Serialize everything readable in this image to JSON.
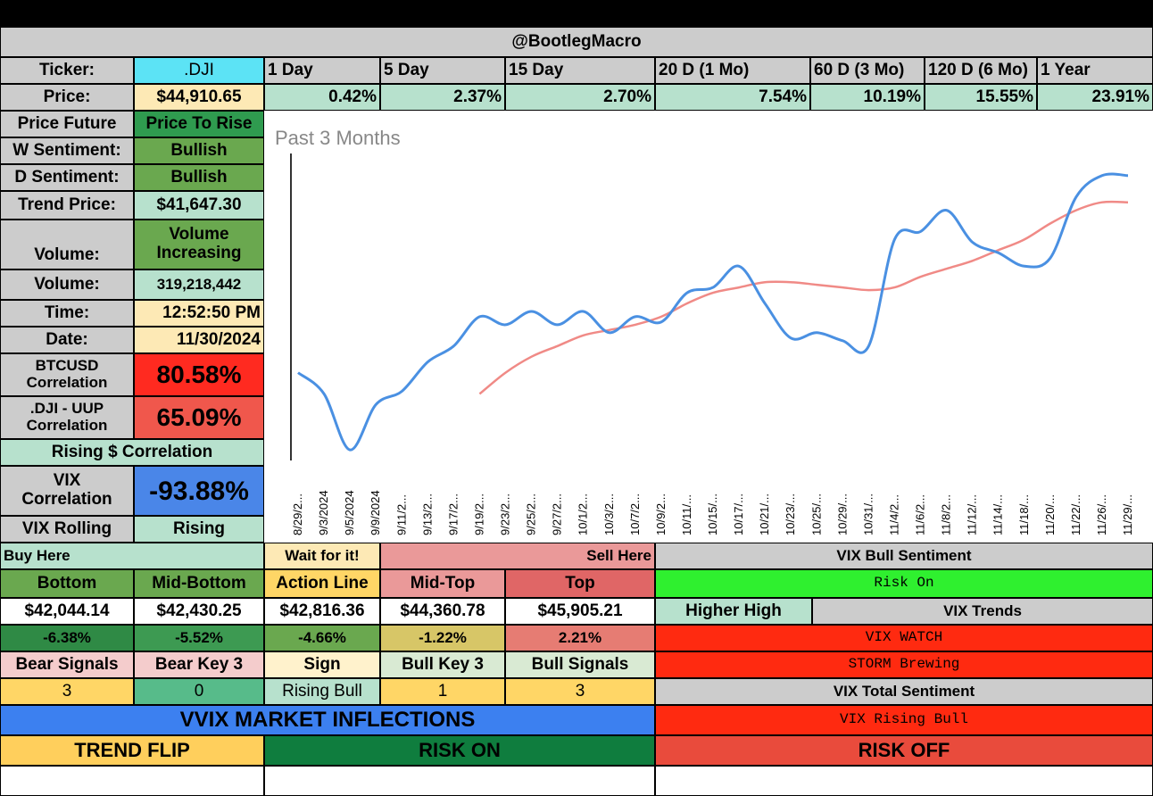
{
  "header": {
    "handle": "@BootlegMacro"
  },
  "ticker": {
    "label": "Ticker:",
    "value": ".DJI"
  },
  "price": {
    "label": "Price:",
    "value": "$44,910.65"
  },
  "periods": [
    {
      "label": "1 Day",
      "value": "0.42%"
    },
    {
      "label": "5 Day",
      "value": "2.37%"
    },
    {
      "label": "15 Day",
      "value": "2.70%"
    },
    {
      "label": "20 D (1 Mo)",
      "value": "7.54%"
    },
    {
      "label": "60 D (3 Mo)",
      "value": "10.19%"
    },
    {
      "label": "120 D (6 Mo)",
      "value": "15.55%"
    },
    {
      "label": "1 Year",
      "value": "23.91%"
    }
  ],
  "stats": {
    "price_future": {
      "label": "Price Future",
      "value": "Price To Rise"
    },
    "w_sentiment": {
      "label": "W Sentiment:",
      "value": "Bullish"
    },
    "d_sentiment": {
      "label": "D Sentiment:",
      "value": "Bullish"
    },
    "trend_price": {
      "label": "Trend Price:",
      "value": "$41,647.30"
    },
    "volume_trend": {
      "label": "Volume:",
      "value_line1": "Volume",
      "value_line2": "Increasing"
    },
    "volume": {
      "label": "Volume:",
      "value": "319,218,442"
    },
    "time": {
      "label": "Time:",
      "value": "12:52:50 PM"
    },
    "date": {
      "label": "Date:",
      "value": "11/30/2024"
    },
    "btc_corr": {
      "label_line1": "BTCUSD",
      "label_line2": "Correlation",
      "value": "80.58%"
    },
    "uup_corr": {
      "label_line1": ".DJI - UUP",
      "label_line2": "Correlation",
      "value": "65.09%"
    },
    "rising_corr": {
      "label": "Rising $ Correlation"
    },
    "vix_corr": {
      "label_line1": "VIX",
      "label_line2": "Correlation",
      "value": "-93.88%"
    },
    "vix_rolling": {
      "label": "VIX Rolling",
      "value": "Rising"
    }
  },
  "colors": {
    "gray": "#cccccc",
    "cyan": "#5ce3f5",
    "cream": "#fde9b5",
    "mint": "#b7e1cd",
    "green": "#6aa84f",
    "green_dark": "#2f9b4f",
    "red": "#ff2a20",
    "red_soft": "#f0574c",
    "blue": "#4a86e8",
    "pink": "#ea9999",
    "pink_dark": "#e06666",
    "lime": "#2ff02f",
    "yellow": "#ffd666",
    "olive": "#d7c667",
    "salmon": "#e67c73",
    "pale_red": "#f4cccc",
    "pale_green": "#d9ead3",
    "pale_yellow": "#fff2cc",
    "mid_green": "#57bb8a",
    "bright_red": "#ff2a10",
    "vvix_blue": "#3c80f0",
    "dark_green": "#0f7d3e",
    "flip_yellow": "#ffcf5c",
    "risk_off_red": "#e94b3c",
    "line_price": "#4a90e2",
    "line_trend": "#f08a86"
  },
  "levels": {
    "buy_here": "Buy Here",
    "wait": "Wait for it!",
    "sell_here": "Sell Here",
    "vix_bull_sentiment": "VIX Bull Sentiment",
    "headers": [
      "Bottom",
      "Mid-Bottom",
      "Action Line",
      "Mid-Top",
      "Top"
    ],
    "prices": [
      "$42,044.14",
      "$42,430.25",
      "$42,816.36",
      "$44,360.78",
      "$45,905.21"
    ],
    "pcts": [
      "-6.38%",
      "-5.52%",
      "-4.66%",
      "-1.22%",
      "2.21%"
    ],
    "signal_headers": [
      "Bear Signals",
      "Bear Key 3",
      "Sign",
      "Bull Key 3",
      "Bull Signals"
    ],
    "signal_values": [
      "3",
      "0",
      "Rising Bull",
      "1",
      "3"
    ],
    "risk_on": "Risk On",
    "higher_high": "Higher High",
    "vix_trends": "VIX Trends",
    "vix_watch": "VIX WATCH",
    "storm": "STORM Brewing",
    "vix_total": "VIX Total Sentiment",
    "vix_rising_bull": "VIX Rising Bull"
  },
  "inflections": {
    "title": "VVIX MARKET INFLECTIONS",
    "trend_flip": "TREND FLIP",
    "risk_on": "RISK ON",
    "risk_off": "RISK OFF"
  },
  "chart_data": {
    "type": "line",
    "title": "Past 3 Months",
    "x": [
      "8/29/2...",
      "9/3/2024",
      "9/5/2024",
      "9/9/2024",
      "9/11/2...",
      "9/13/2...",
      "9/17/2...",
      "9/19/2...",
      "9/23/2...",
      "9/25/2...",
      "9/27/2...",
      "10/1/2...",
      "10/3/2...",
      "10/7/2...",
      "10/9/2...",
      "10/11/...",
      "10/15/...",
      "10/17/...",
      "10/21/...",
      "10/23/...",
      "10/25/...",
      "10/29/...",
      "10/31/...",
      "11/4/2...",
      "11/6/2...",
      "11/8/2...",
      "11/12/...",
      "11/14/...",
      "11/18/...",
      "11/20/...",
      "11/22/...",
      "11/26/...",
      "11/29/..."
    ],
    "series": [
      {
        "values": [
          41250,
          40850,
          39800,
          40650,
          40900,
          41450,
          41750,
          42300,
          42150,
          42400,
          42150,
          42400,
          42000,
          42300,
          42200,
          42750,
          42850,
          43250,
          42550,
          41900,
          42000,
          41850,
          41750,
          43750,
          43900,
          44300,
          43700,
          43500,
          43250,
          43400,
          44550,
          44950,
          44950
        ]
      },
      {
        "values": [
          null,
          null,
          null,
          null,
          null,
          null,
          null,
          40850,
          41250,
          41550,
          41750,
          41950,
          42050,
          42150,
          42300,
          42550,
          42750,
          42850,
          42950,
          42950,
          42900,
          42850,
          42800,
          42850,
          43050,
          43200,
          43350,
          43550,
          43750,
          44050,
          44300,
          44450,
          44450
        ]
      }
    ],
    "ylim": [
      39500,
      45500
    ]
  }
}
